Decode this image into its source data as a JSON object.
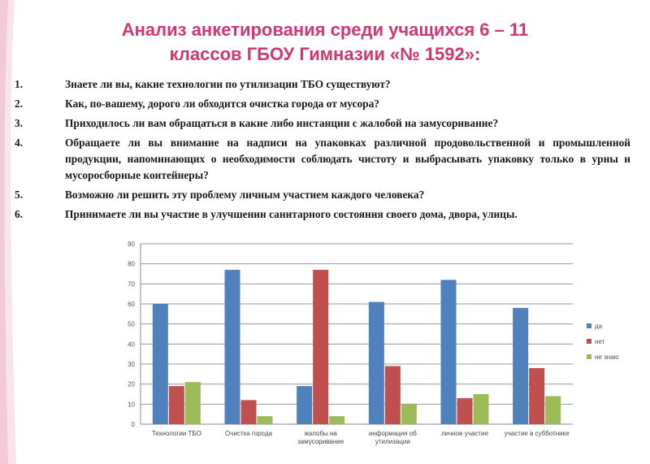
{
  "slide": {
    "title_line1": "Анализ анкетирования  среди учащихся 6 – 11",
    "title_line2": "классов ГБОУ Гимназии «№ 1592»:",
    "questions": [
      {
        "num": "1.",
        "text": "Знаете ли вы, какие технологии по утилизации ТБО существуют?"
      },
      {
        "num": "2.",
        "text": "Как, по-вашему, дорого ли обходится очистка города от мусора?"
      },
      {
        "num": "3.",
        "text": "Приходилось ли вам обращаться в какие либо инстанции с жалобой на замусоривание?"
      },
      {
        "num": "4.",
        "text": "Обращаете ли вы внимание на надписи на упаковках различной продовольственной и промышленной продукции, напоминающих о необходимости соблюдать чистоту и выбрасывать упаковку только в урны и мусоросборные контейнеры?"
      },
      {
        "num": "5.",
        "text": "Возможно ли решить эту проблему личным участием каждого человека?"
      },
      {
        "num": "6.",
        "text": "Принимаете ли вы участие в улучшении санитарного состояния своего дома, двора, улицы."
      }
    ],
    "colors": {
      "title": "#d4366f",
      "text": "#1a1a1a"
    }
  },
  "chart_data": {
    "type": "bar",
    "categories": [
      [
        "Технологии ТБО"
      ],
      [
        "Очистка города"
      ],
      [
        "жалобы на",
        "замусоривание"
      ],
      [
        "информация об",
        "утилизации"
      ],
      [
        "личное участие"
      ],
      [
        "участие в субботнике"
      ]
    ],
    "series": [
      {
        "name": "да",
        "color": "#4f81bd",
        "values": [
          60,
          77,
          19,
          61,
          72,
          58
        ]
      },
      {
        "name": "нет",
        "color": "#c0504d",
        "values": [
          19,
          12,
          77,
          29,
          13,
          28
        ]
      },
      {
        "name": "не знаю",
        "color": "#9bbb59",
        "values": [
          21,
          4,
          4,
          10,
          15,
          14
        ]
      }
    ],
    "yticks": [
      0,
      10,
      20,
      30,
      40,
      50,
      60,
      70,
      80,
      90
    ],
    "ylim": [
      0,
      90
    ],
    "grid": true,
    "legend": "right",
    "title": "",
    "xlabel": "",
    "ylabel": ""
  }
}
